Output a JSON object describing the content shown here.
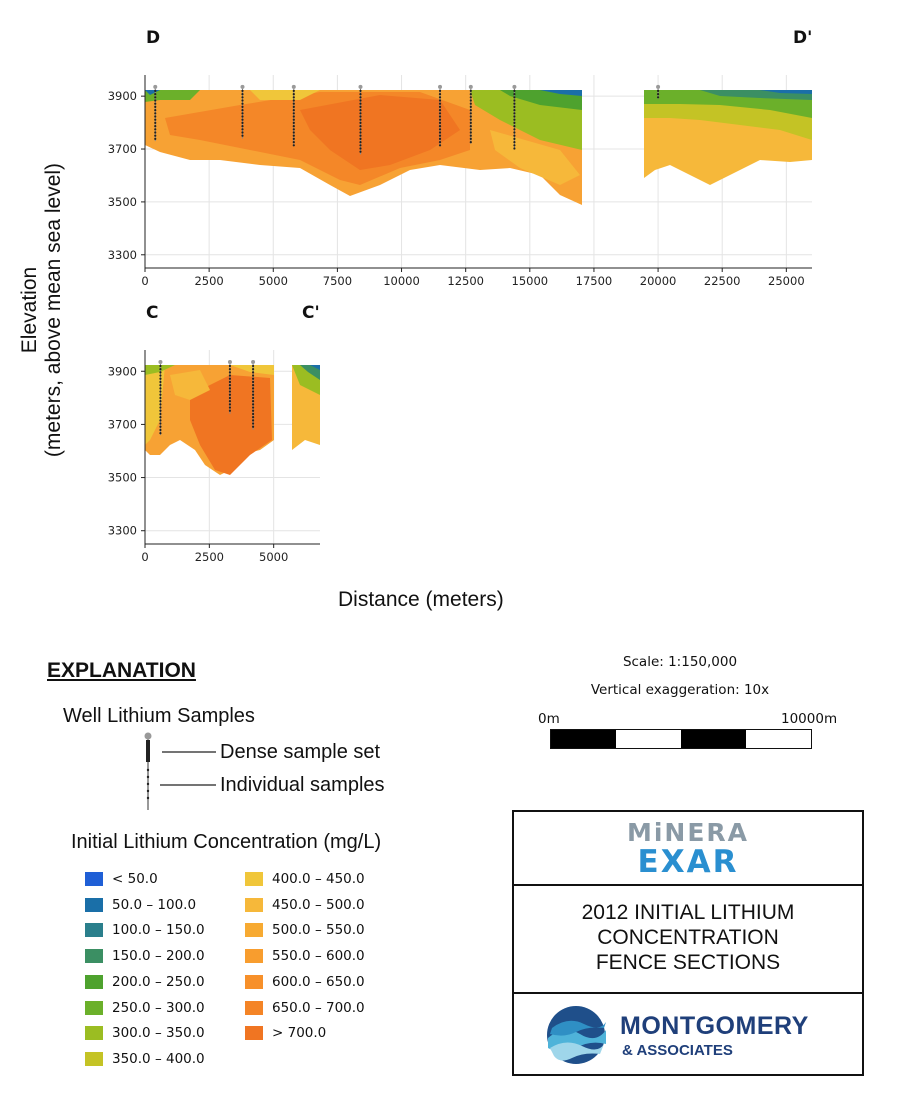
{
  "sections": [
    {
      "label_left": "D",
      "label_right": "D'"
    },
    {
      "label_left": "C",
      "label_right": "C'"
    }
  ],
  "axis": {
    "ylabel_line1": "Elevation",
    "ylabel_line2": "(meters, above mean sea level)",
    "xlabel": "Distance (meters)"
  },
  "chart_data": [
    {
      "type": "heatmap",
      "section": "D-D'",
      "xticks": [
        0,
        2500,
        5000,
        7500,
        10000,
        12500,
        15000,
        17500,
        20000,
        22500,
        25000
      ],
      "yticks": [
        3900,
        3700,
        3500,
        3300
      ],
      "xlim": [
        0,
        26000
      ],
      "ylim": [
        3250,
        3980
      ],
      "grid": true,
      "wells": [
        {
          "x": 400,
          "top": 3935,
          "bottom": 3730
        },
        {
          "x": 3800,
          "top": 3935,
          "bottom": 3740
        },
        {
          "x": 5800,
          "top": 3935,
          "bottom": 3710
        },
        {
          "x": 8400,
          "top": 3935,
          "bottom": 3680
        },
        {
          "x": 11500,
          "top": 3935,
          "bottom": 3710
        },
        {
          "x": 12700,
          "top": 3935,
          "bottom": 3720
        },
        {
          "x": 14400,
          "top": 3935,
          "bottom": 3700
        },
        {
          "x": 20000,
          "top": 3935,
          "bottom": 3890
        }
      ]
    },
    {
      "type": "heatmap",
      "section": "C-C'",
      "xticks": [
        0,
        2500,
        5000
      ],
      "yticks": [
        3900,
        3700,
        3500,
        3300
      ],
      "xlim": [
        0,
        6800
      ],
      "ylim": [
        3250,
        3980
      ],
      "grid": true,
      "wells": [
        {
          "x": 600,
          "top": 3935,
          "bottom": 3660
        },
        {
          "x": 3300,
          "top": 3935,
          "bottom": 3740
        },
        {
          "x": 4200,
          "top": 3935,
          "bottom": 3680
        }
      ]
    }
  ],
  "explanation": {
    "title": "EXPLANATION",
    "wells_heading": "Well Lithium Samples",
    "dense_label": "Dense sample set",
    "individual_label": "Individual samples",
    "conc_heading": "Initial Lithium Concentration (mg/L)"
  },
  "legend": [
    {
      "label": "< 50.0",
      "color": "#1f5fd6"
    },
    {
      "label": "50.0 – 100.0",
      "color": "#1a6fa8"
    },
    {
      "label": "100.0 – 150.0",
      "color": "#2a7f8c"
    },
    {
      "label": "150.0 – 200.0",
      "color": "#3b8f63"
    },
    {
      "label": "200.0 – 250.0",
      "color": "#4ea22e"
    },
    {
      "label": "250.0 – 300.0",
      "color": "#6bb02a"
    },
    {
      "label": "300.0 – 350.0",
      "color": "#9bbd22"
    },
    {
      "label": "350.0 – 400.0",
      "color": "#c4c325"
    },
    {
      "label": "400.0 – 450.0",
      "color": "#f0c63a"
    },
    {
      "label": "450.0 – 500.0",
      "color": "#f6b83a"
    },
    {
      "label": "500.0 – 550.0",
      "color": "#f7aa32"
    },
    {
      "label": "550.0 – 600.0",
      "color": "#f89d2e"
    },
    {
      "label": "600.0 – 650.0",
      "color": "#f7902a"
    },
    {
      "label": "650.0 – 700.0",
      "color": "#f48426"
    },
    {
      "label": "> 700.0",
      "color": "#f07522"
    }
  ],
  "scale": {
    "scale_text": "Scale: 1:150,000",
    "vert_text": "Vertical exaggeration: 10x",
    "start": "0m",
    "end": "10000m"
  },
  "titlebox": {
    "logo1_line1": "MiNERA",
    "logo1_line2": "EXAR",
    "title_line1": "2012 INITIAL LITHIUM",
    "title_line2": "CONCENTRATION",
    "title_line3": "FENCE SECTIONS",
    "logo2_line1": "MONTGOMERY",
    "logo2_line2": "& ASSOCIATES"
  }
}
